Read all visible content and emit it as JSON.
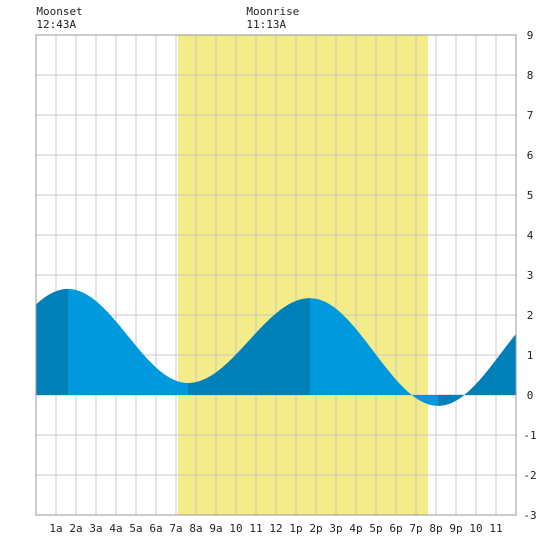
{
  "chart_data": {
    "type": "area",
    "title": "",
    "xlabel": "",
    "ylabel": "",
    "x_ticks": [
      "1a",
      "2a",
      "3a",
      "4a",
      "5a",
      "6a",
      "7a",
      "8a",
      "9a",
      "10",
      "11",
      "12",
      "1p",
      "2p",
      "3p",
      "4p",
      "5p",
      "6p",
      "7p",
      "8p",
      "9p",
      "10",
      "11"
    ],
    "y_ticks": [
      "-3",
      "-2",
      "-1",
      "0",
      "1",
      "2",
      "3",
      "4",
      "5",
      "6",
      "7",
      "8",
      "9"
    ],
    "ylim": [
      -3,
      9
    ],
    "xlim_hours": [
      0,
      24
    ],
    "daylight_hours": [
      7.1,
      19.6
    ],
    "moon_events": [
      {
        "name": "Moonset",
        "time": "12:43A"
      },
      {
        "name": "Moonrise",
        "time": "11:13A"
      }
    ],
    "tide_extremes": [
      {
        "time_h": 1.6,
        "height": 2.65,
        "type": "high"
      },
      {
        "time_h": 7.6,
        "height": 0.3,
        "type": "low"
      },
      {
        "time_h": 13.7,
        "height": 2.42,
        "type": "high"
      },
      {
        "time_h": 20.1,
        "height": -0.27,
        "type": "low"
      }
    ],
    "night_shade_bands_hours": [
      [
        0,
        1.6
      ],
      [
        7.6,
        13.7
      ],
      [
        20.1,
        24
      ]
    ],
    "colors": {
      "tide_fill": "#0099dd",
      "tide_fill_dark": "#0080b8",
      "daylight": "#f4ec88",
      "grid": "#c8c8c8",
      "background": "#ffffff"
    }
  }
}
